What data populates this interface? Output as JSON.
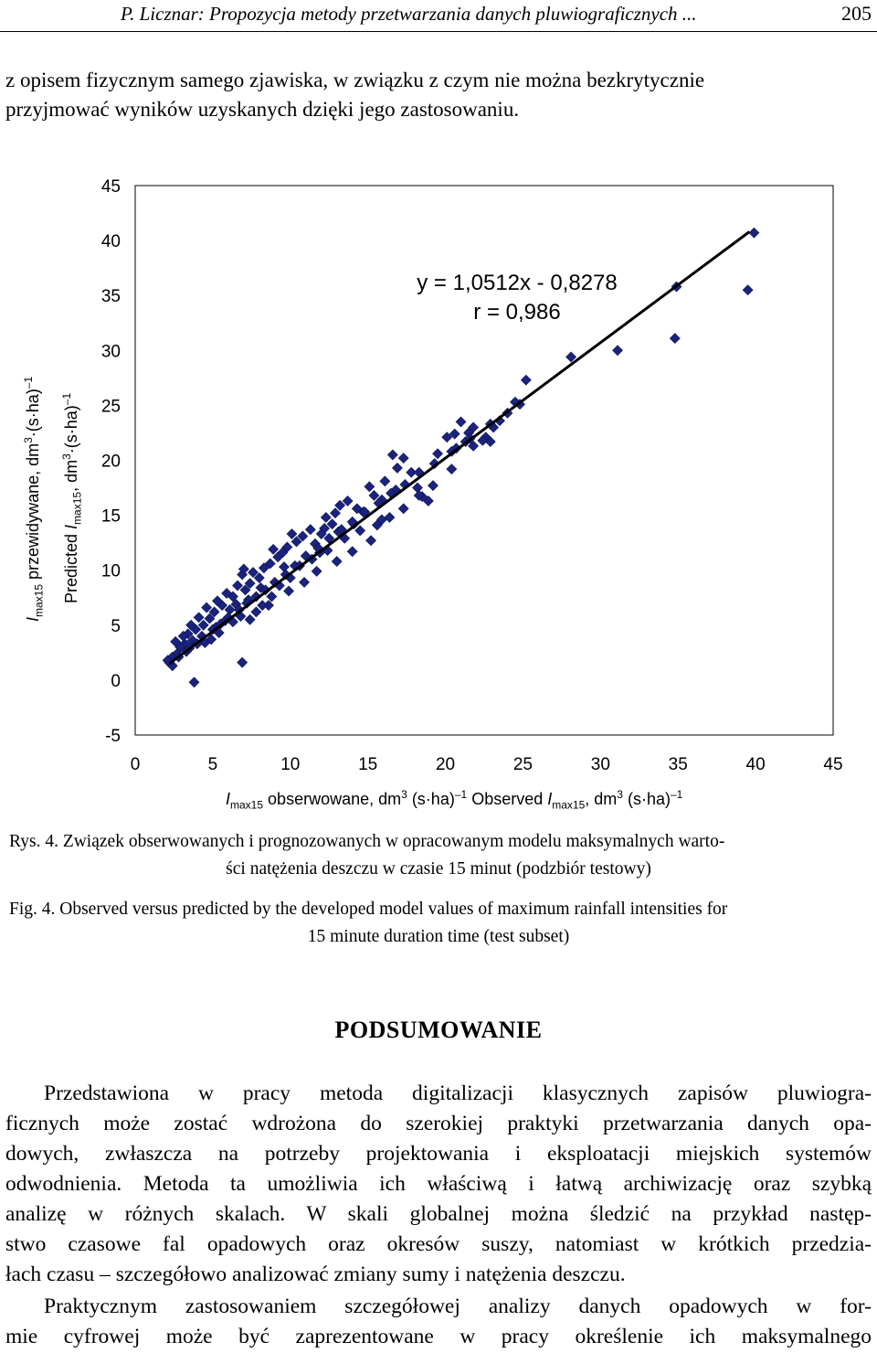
{
  "header": {
    "running_title": "P. Licznar: Propozycja metody przetwarzania danych pluwiograficznych ...",
    "page_number": "205"
  },
  "intro_lines": [
    "z opisem fizycznym samego zjawiska, w związku z czym nie można bezkrytycznie",
    "przyjmować wyników uzyskanych dzięki jego zastosowaniu."
  ],
  "figure": {
    "y_label_pl": {
      "sym": "I",
      "sub": "max15",
      "text": " przewidywane, dm",
      "sup": "3",
      "tail": "·(s·ha)",
      "sup2": "–1"
    },
    "y_label_en": {
      "pre": "Predicted ",
      "sym": "I",
      "sub": "max15",
      "text": ", dm",
      "sup": "3",
      "tail": "·(s·ha)",
      "sup2": "–1"
    },
    "x_label": {
      "sym": "I",
      "sub": "max15",
      "text": " obserwowane, dm",
      "sup": "3",
      "tail": " (s·ha)",
      "sup2": "–1",
      "mid": " Observed ",
      "sym2": "I",
      "sub2": "max15",
      "text2": ", dm",
      "sup3": "3",
      "tail2": " (s·ha)",
      "sup4": "–1"
    },
    "caption_pl_1": "Rys. 4. Związek obserwowanych i prognozowanych w opracowanym modelu maksymalnych warto-",
    "caption_pl_2": "ści natężenia deszczu w czasie 15 minut (podzbiór testowy)",
    "caption_en_1": "Fig. 4. Observed versus predicted by the developed model values of maximum rainfall intensities for",
    "caption_en_2": "15 minute duration time (test subset)"
  },
  "chart_data": {
    "type": "scatter",
    "xlim": [
      0,
      45
    ],
    "ylim": [
      -5,
      45
    ],
    "x_ticks": [
      "0",
      "5",
      "10",
      "15",
      "20",
      "25",
      "30",
      "35",
      "40",
      "45"
    ],
    "y_ticks": [
      "45",
      "40",
      "35",
      "30",
      "25",
      "20",
      "15",
      "10",
      "5",
      "0",
      "-5"
    ],
    "annotation_1": "y = 1,0512x - 0,8278",
    "annotation_2": "r = 0,986",
    "regression": {
      "slope": 1.0512,
      "intercept": -0.8278,
      "x_from": 2.2,
      "x_to": 39.6
    },
    "marker_color": "#1a237e",
    "line_color": "#000000",
    "points": [
      [
        39.9,
        40.7
      ],
      [
        39.5,
        35.5
      ],
      [
        34.9,
        35.8
      ],
      [
        34.8,
        31.1
      ],
      [
        31.1,
        30.0
      ],
      [
        28.1,
        29.4
      ],
      [
        25.2,
        27.3
      ],
      [
        24.8,
        25.1
      ],
      [
        24.5,
        25.3
      ],
      [
        23.5,
        23.6
      ],
      [
        23.1,
        23.0
      ],
      [
        22.6,
        22.1
      ],
      [
        22.9,
        21.7
      ],
      [
        22.4,
        21.8
      ],
      [
        21.8,
        21.3
      ],
      [
        21.3,
        21.7
      ],
      [
        21.5,
        22.5
      ],
      [
        21.8,
        23.0
      ],
      [
        21.0,
        23.5
      ],
      [
        20.6,
        22.4
      ],
      [
        20.1,
        22.1
      ],
      [
        20.7,
        21.1
      ],
      [
        19.5,
        20.6
      ],
      [
        18.2,
        17.5
      ],
      [
        18.5,
        16.7
      ],
      [
        18.9,
        16.3
      ],
      [
        18.3,
        16.8
      ],
      [
        17.8,
        18.9
      ],
      [
        17.3,
        20.2
      ],
      [
        16.9,
        19.3
      ],
      [
        16.6,
        20.5
      ],
      [
        16.1,
        18.1
      ],
      [
        15.9,
        16.4
      ],
      [
        15.4,
        16.8
      ],
      [
        15.9,
        14.6
      ],
      [
        15.6,
        14.1
      ],
      [
        15.1,
        17.6
      ],
      [
        14.7,
        15.3
      ],
      [
        14.3,
        15.6
      ],
      [
        14.1,
        14.2
      ],
      [
        13.7,
        16.3
      ],
      [
        13.2,
        15.9
      ],
      [
        12.9,
        15.2
      ],
      [
        12.7,
        14.2
      ],
      [
        13.1,
        13.5
      ],
      [
        12.3,
        14.8
      ],
      [
        12.2,
        13.8
      ],
      [
        12.0,
        13.3
      ],
      [
        11.6,
        12.4
      ],
      [
        11.9,
        11.6
      ],
      [
        11.3,
        13.7
      ],
      [
        10.8,
        13.1
      ],
      [
        10.4,
        12.6
      ],
      [
        10.1,
        13.3
      ],
      [
        9.8,
        12.1
      ],
      [
        9.5,
        11.6
      ],
      [
        9.6,
        10.3
      ],
      [
        9.2,
        11.2
      ],
      [
        8.9,
        11.9
      ],
      [
        8.7,
        10.6
      ],
      [
        8.3,
        10.2
      ],
      [
        8.0,
        9.3
      ],
      [
        8.1,
        8.4
      ],
      [
        7.6,
        9.8
      ],
      [
        7.4,
        8.8
      ],
      [
        7.1,
        8.2
      ],
      [
        7.3,
        7.3
      ],
      [
        6.9,
        9.6
      ],
      [
        6.6,
        8.6
      ],
      [
        6.3,
        7.6
      ],
      [
        6.5,
        6.9
      ],
      [
        6.1,
        6.4
      ],
      [
        5.9,
        7.9
      ],
      [
        5.6,
        6.8
      ],
      [
        5.8,
        5.4
      ],
      [
        5.3,
        7.2
      ],
      [
        5.1,
        6.2
      ],
      [
        5.2,
        4.8
      ],
      [
        4.8,
        5.6
      ],
      [
        4.6,
        6.6
      ],
      [
        4.4,
        5.0
      ],
      [
        4.3,
        4.0
      ],
      [
        4.1,
        5.7
      ],
      [
        3.9,
        4.6
      ],
      [
        3.7,
        3.6
      ],
      [
        3.6,
        5.0
      ],
      [
        3.4,
        4.2
      ],
      [
        3.2,
        3.3
      ],
      [
        3.1,
        4.0
      ],
      [
        2.9,
        3.0
      ],
      [
        2.7,
        2.4
      ],
      [
        2.6,
        3.5
      ],
      [
        2.4,
        2.1
      ],
      [
        2.2,
        1.6
      ],
      [
        2.4,
        1.3
      ],
      [
        2.1,
        1.8
      ],
      [
        3.8,
        -0.2
      ],
      [
        6.9,
        1.6
      ],
      [
        7.0,
        10.1
      ],
      [
        7.4,
        5.5
      ],
      [
        8.6,
        6.8
      ],
      [
        9.3,
        8.6
      ],
      [
        10.0,
        9.3
      ],
      [
        10.6,
        10.4
      ],
      [
        11.4,
        11.0
      ],
      [
        12.4,
        11.8
      ],
      [
        13.5,
        12.9
      ],
      [
        14.5,
        13.6
      ],
      [
        16.4,
        14.8
      ],
      [
        17.3,
        15.6
      ],
      [
        19.2,
        17.7
      ],
      [
        20.4,
        19.2
      ],
      [
        16.8,
        17.3
      ],
      [
        15.2,
        12.7
      ],
      [
        14.0,
        11.7
      ],
      [
        13.0,
        10.8
      ],
      [
        11.7,
        9.9
      ],
      [
        10.9,
        8.9
      ],
      [
        9.9,
        8.1
      ],
      [
        8.8,
        7.6
      ],
      [
        8.2,
        6.8
      ],
      [
        7.8,
        6.2
      ],
      [
        6.8,
        5.8
      ],
      [
        6.3,
        5.3
      ],
      [
        5.4,
        4.3
      ],
      [
        4.9,
        3.7
      ],
      [
        4.5,
        3.4
      ],
      [
        3.3,
        2.6
      ],
      [
        2.8,
        2.1
      ],
      [
        3.5,
        2.9
      ],
      [
        4.0,
        3.3
      ],
      [
        5.0,
        4.6
      ],
      [
        5.5,
        5.1
      ],
      [
        6.0,
        5.7
      ],
      [
        6.7,
        6.4
      ],
      [
        7.2,
        7.0
      ],
      [
        7.8,
        7.6
      ],
      [
        8.4,
        8.2
      ],
      [
        9.0,
        8.9
      ],
      [
        9.7,
        9.6
      ],
      [
        10.3,
        10.4
      ],
      [
        11.0,
        11.3
      ],
      [
        11.8,
        12.0
      ],
      [
        12.5,
        12.9
      ],
      [
        13.3,
        13.7
      ],
      [
        14.0,
        14.4
      ],
      [
        14.8,
        15.3
      ],
      [
        15.7,
        16.1
      ],
      [
        16.5,
        17.0
      ],
      [
        17.4,
        17.8
      ],
      [
        18.3,
        18.9
      ],
      [
        19.3,
        19.7
      ],
      [
        20.4,
        20.8
      ],
      [
        21.6,
        22.0
      ],
      [
        22.9,
        23.3
      ],
      [
        24.0,
        24.3
      ]
    ]
  },
  "section": {
    "title": "PODSUMOWANIE",
    "para1_lines": [
      "Przedstawiona w pracy metoda digitalizacji klasycznych zapisów pluwiogra-",
      "ficznych może zostać wdrożona do szerokiej praktyki przetwarzania danych opa-",
      "dowych, zwłaszcza na potrzeby projektowania i eksploatacji miejskich systemów",
      "odwodnienia. Metoda ta umożliwia ich właściwą i łatwą archiwizację oraz szybką",
      "analizę w różnych skalach. W skali globalnej można śledzić na przykład następ-",
      "stwo czasowe fal opadowych oraz okresów suszy, natomiast w krótkich przedzia-",
      "łach czasu – szczegółowo analizować zmiany sumy i natężenia deszczu."
    ],
    "para2_lines": [
      "Praktycznym zastosowaniem szczegółowej analizy danych opadowych w for-",
      "mie cyfrowej może być zaprezentowane w pracy określenie ich maksymalnego"
    ]
  }
}
